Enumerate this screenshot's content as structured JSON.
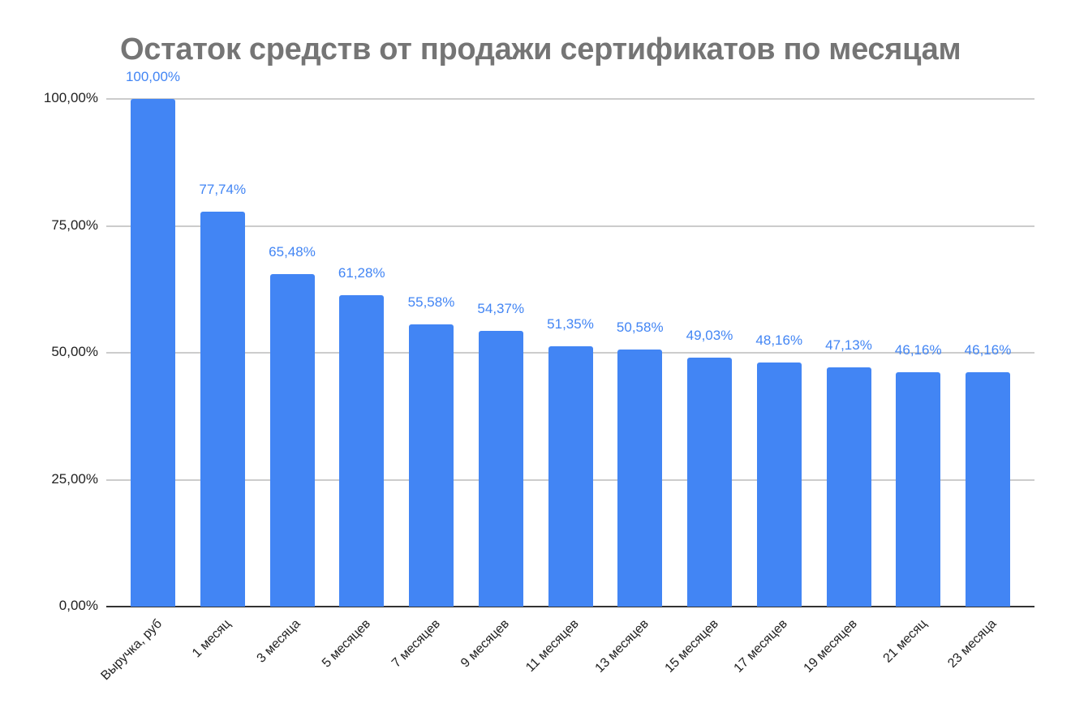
{
  "chart_data": {
    "type": "bar",
    "title": "Остаток средств от продажи сертификатов по месяцам",
    "xlabel": "",
    "ylabel": "",
    "ylim": [
      0,
      100
    ],
    "yticks": [
      "0,00%",
      "25,00%",
      "50,00%",
      "75,00%",
      "100,00%"
    ],
    "grid": true,
    "legend": null,
    "bar_color": "#4285f4",
    "categories": [
      "Выручка, руб",
      "1 месяц",
      "3 месяца",
      "5 месяцев",
      "7 месяцев",
      "9 месяцев",
      "11 месяцев",
      "13 месяцев",
      "15 месяцев",
      "17 месяцев",
      "19 месяцев",
      "21 месяц",
      "23 месяца"
    ],
    "values": [
      100.0,
      77.74,
      65.48,
      61.28,
      55.58,
      54.37,
      51.35,
      50.58,
      49.03,
      48.16,
      47.13,
      46.16,
      46.16
    ],
    "data_labels": [
      "100,00%",
      "77,74%",
      "65,48%",
      "61,28%",
      "55,58%",
      "54,37%",
      "51,35%",
      "50,58%",
      "49,03%",
      "48,16%",
      "47,13%",
      "46,16%",
      "46,16%"
    ]
  }
}
